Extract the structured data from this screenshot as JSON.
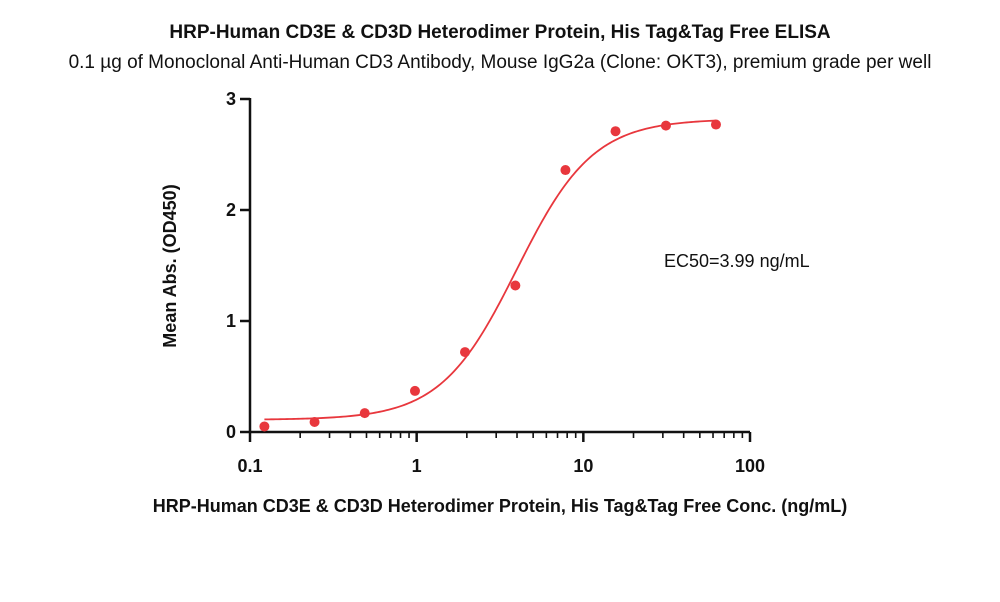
{
  "chart_data": {
    "type": "scatter",
    "title": "HRP-Human CD3E & CD3D Heterodimer Protein, His Tag&Tag Free ELISA",
    "subtitle": "0.1 µg of Monoclonal Anti-Human CD3 Antibody, Mouse IgG2a (Clone: OKT3), premium grade per well",
    "xlabel": "HRP-Human CD3E & CD3D Heterodimer Protein, His Tag&Tag Free Conc. (ng/mL)",
    "ylabel": "Mean Abs. (OD450)",
    "xscale": "log",
    "xlim": [
      0.1,
      100
    ],
    "ylim": [
      0,
      3
    ],
    "xticks": [
      0.1,
      1,
      10,
      100
    ],
    "xtick_labels": [
      "0.1",
      "1",
      "10",
      "100"
    ],
    "yticks": [
      0,
      1,
      2,
      3
    ],
    "ytick_labels": [
      "0",
      "1",
      "2",
      "3"
    ],
    "grid": false,
    "series": [
      {
        "x": [
          0.122,
          0.244,
          0.488,
          0.977,
          1.95,
          3.91,
          7.81,
          15.6,
          31.3,
          62.5
        ],
        "y": [
          0.05,
          0.09,
          0.17,
          0.37,
          0.72,
          1.32,
          2.36,
          2.71,
          2.76,
          2.77
        ],
        "color": "#e8373d"
      }
    ],
    "fit_curve": {
      "model": "4PL",
      "bottom": 0.11,
      "top": 2.82,
      "ec50": 3.99,
      "hill": 1.9,
      "color": "#e8373d"
    },
    "annotation": "EC50=3.99 ng/mL"
  }
}
